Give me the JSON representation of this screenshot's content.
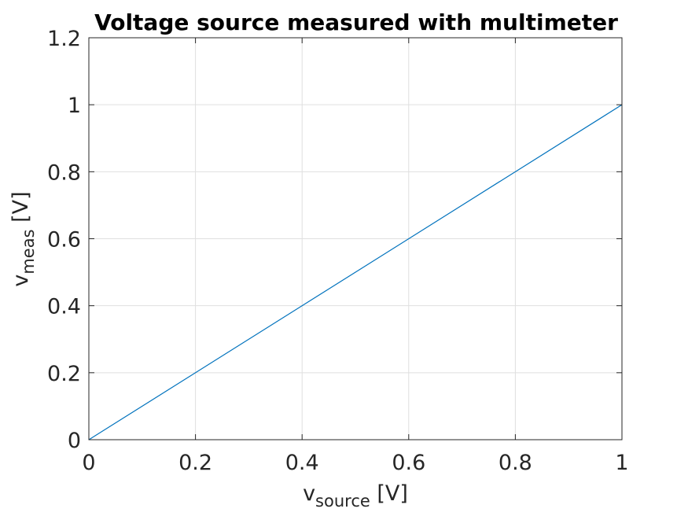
{
  "chart_data": {
    "type": "line",
    "title": "Voltage source measured with multimeter",
    "xlabel": {
      "main": "v",
      "sub": "source",
      "unit": " [V]"
    },
    "ylabel": {
      "main": "v",
      "sub": "meas",
      "unit": " [V]"
    },
    "xlim": [
      0,
      1
    ],
    "ylim": [
      0,
      1.2
    ],
    "xticks": [
      0,
      0.2,
      0.4,
      0.6,
      0.8,
      1
    ],
    "xtick_labels": [
      "0",
      "0.2",
      "0.4",
      "0.6",
      "0.8",
      "1"
    ],
    "yticks": [
      0,
      0.2,
      0.4,
      0.6,
      0.8,
      1,
      1.2
    ],
    "ytick_labels": [
      "0",
      "0.2",
      "0.4",
      "0.6",
      "0.8",
      "1",
      "1.2"
    ],
    "grid": true,
    "series": [
      {
        "x": [
          0,
          1
        ],
        "y": [
          0,
          1
        ],
        "color": "#0072BD"
      }
    ]
  }
}
